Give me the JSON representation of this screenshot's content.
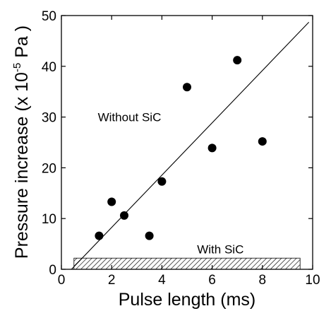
{
  "chart_data": {
    "type": "scatter",
    "xlabel": "Pulse length (ms)",
    "ylabel_main": "Pressure increase (x 10",
    "ylabel_exp": "-5",
    "ylabel_unit": " Pa )",
    "xlim": [
      0,
      10
    ],
    "ylim": [
      0,
      50
    ],
    "xticks": [
      0,
      2,
      4,
      6,
      8,
      10
    ],
    "yticks": [
      0,
      10,
      20,
      30,
      40,
      50
    ],
    "grid": false,
    "legend": "none",
    "series": [
      {
        "marker": "filled-circle",
        "color": "#000000",
        "points": [
          {
            "x": 1.5,
            "y": 6.6
          },
          {
            "x": 2.0,
            "y": 13.3
          },
          {
            "x": 2.5,
            "y": 10.6
          },
          {
            "x": 3.5,
            "y": 6.6
          },
          {
            "x": 4.0,
            "y": 17.3
          },
          {
            "x": 5.0,
            "y": 35.9
          },
          {
            "x": 6.0,
            "y": 23.9
          },
          {
            "x": 7.0,
            "y": 41.2
          },
          {
            "x": 8.0,
            "y": 25.2
          }
        ]
      }
    ],
    "fit_line": {
      "x": [
        0.4,
        9.85
      ],
      "y": [
        0,
        48.7
      ]
    },
    "hatched_band": {
      "x": [
        0.5,
        9.5
      ],
      "y": [
        0,
        2.2
      ]
    },
    "annotations": [
      {
        "text": "Without SiC",
        "x": 1.45,
        "y": 29.2
      },
      {
        "text": "With SiC",
        "x": 5.4,
        "y": 3.1
      }
    ]
  }
}
